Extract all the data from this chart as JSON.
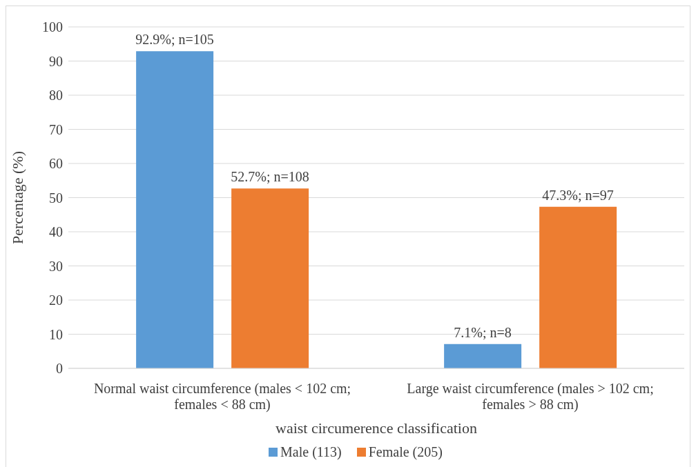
{
  "chart_data": {
    "type": "bar",
    "categories": [
      "Normal waist circumference (males < 102 cm; females < 88 cm)",
      "Large waist circumference (males > 102 cm; females > 88 cm)"
    ],
    "series": [
      {
        "name": "Male (113)",
        "color": "#5b9bd5",
        "values": [
          92.9,
          7.1
        ],
        "value_labels": [
          "92.9%; n=105",
          "7.1%; n=8"
        ]
      },
      {
        "name": "Female (205)",
        "color": "#ed7d31",
        "values": [
          52.7,
          47.3
        ],
        "value_labels": [
          "52.7%; n=108",
          "47.3%; n=97"
        ]
      }
    ],
    "xlabel": "waist circumerence classification",
    "ylabel": "Percentage (%)",
    "ylim": [
      0,
      100
    ],
    "yticks": [
      0,
      10,
      20,
      30,
      40,
      50,
      60,
      70,
      80,
      90,
      100
    ],
    "grid": "y",
    "legend": "bottom"
  }
}
